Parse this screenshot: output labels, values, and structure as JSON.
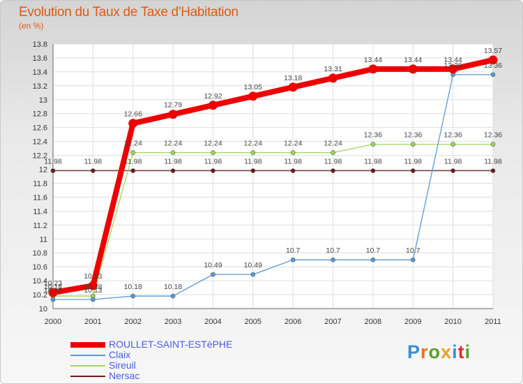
{
  "title": "Evolution du Taux de Taxe d'Habitation",
  "subtitle": "(en %)",
  "logo": {
    "text": "Proxiti",
    "letter_colors": [
      "#3a8fd6",
      "#e8701a",
      "#5aa02c",
      "#f0a020",
      "#3a8fd6",
      "#d83030",
      "#5aa02c"
    ]
  },
  "chart_data": {
    "type": "line",
    "x": [
      "2000",
      "2001",
      "2002",
      "2003",
      "2004",
      "2005",
      "2006",
      "2007",
      "2008",
      "2009",
      "2010",
      "2011"
    ],
    "ylim": [
      10,
      13.8
    ],
    "yticks": [
      "10",
      "10.2",
      "10.4",
      "10.6",
      "10.8",
      "11",
      "11.2",
      "11.4",
      "11.6",
      "11.8",
      "12",
      "12.2",
      "12.4",
      "12.6",
      "12.8",
      "13",
      "13.2",
      "13.4",
      "13.6",
      "13.8"
    ],
    "grid": true,
    "legend": "bottom-left",
    "series": [
      {
        "name": "Nersac",
        "color": "#6b1a1a",
        "values": [
          11.98,
          11.98,
          11.98,
          11.98,
          11.98,
          11.98,
          11.98,
          11.98,
          11.98,
          11.98,
          11.98,
          11.98
        ],
        "labels": [
          "11.98",
          "11.98",
          "11.98",
          "11.98",
          "11.98",
          "11.98",
          "11.98",
          "11.98",
          "11.98",
          "11.98",
          "11.98",
          "11.98"
        ]
      },
      {
        "name": "Sireuil",
        "color": "#9ed85e",
        "values": [
          10.18,
          10.18,
          12.24,
          12.24,
          12.24,
          12.24,
          12.24,
          12.24,
          12.36,
          12.36,
          12.36,
          12.36
        ],
        "labels": [
          "10.18",
          "10.18",
          "12.24",
          "12.24",
          "12.24",
          "12.24",
          "12.24",
          "12.24",
          "12.36",
          "12.36",
          "12.36",
          "12.36"
        ]
      },
      {
        "name": "Claix",
        "color": "#5a9ad5",
        "values": [
          10.13,
          10.13,
          10.18,
          10.18,
          10.49,
          10.49,
          10.7,
          10.7,
          10.7,
          10.7,
          13.36,
          13.36
        ],
        "labels": [
          "10.13",
          "10.13",
          "10.18",
          "10.18",
          "10.49",
          "10.49",
          "10.7",
          "10.7",
          "10.7",
          "10.7",
          "13.36",
          "13.36"
        ]
      },
      {
        "name": "ROULLET-SAINT-ESTèPHE",
        "color": "#ee0000",
        "values": [
          10.23,
          10.33,
          12.66,
          12.79,
          12.92,
          13.05,
          13.18,
          13.31,
          13.44,
          13.44,
          13.44,
          13.57
        ],
        "labels": [
          "10.23",
          "10.33",
          "12.66",
          "12.79",
          "12.92",
          "13.05",
          "13.18",
          "13.31",
          "13.44",
          "13.44",
          "13.44",
          "13.57"
        ]
      }
    ]
  }
}
